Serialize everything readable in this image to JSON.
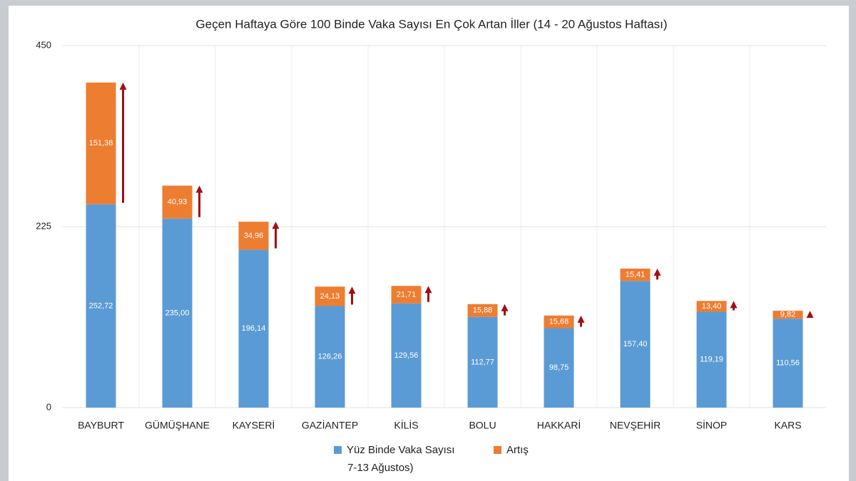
{
  "chart_data": {
    "type": "stacked_bar",
    "title": "Geçen Haftaya Göre 100 Binde Vaka Sayısı En Çok Artan İller (14 - 20 Ağustos Haftası)",
    "categories": [
      "BAYBURT",
      "GÜMÜŞHANE",
      "KAYSERİ",
      "GAZİANTEP",
      "KİLİS",
      "BOLU",
      "HAKKARİ",
      "NEVŞEHİR",
      "SİNOP",
      "KARS"
    ],
    "series": [
      {
        "name": "Yüz Binde Vaka Sayısı",
        "color": "#5b9bd5",
        "values": [
          252.72,
          235.0,
          196.14,
          126.26,
          129.56,
          112.77,
          98.75,
          157.4,
          119.19,
          110.56
        ],
        "value_labels": [
          "252,72",
          "235,00",
          "196,14",
          "126,26",
          "129,56",
          "112,77",
          "98,75",
          "157,40",
          "119,19",
          "110,56"
        ]
      },
      {
        "name": "Artış",
        "color": "#ed7d31",
        "values": [
          151.38,
          40.93,
          34.96,
          24.13,
          21.71,
          15.88,
          15.68,
          15.41,
          13.4,
          9.82
        ],
        "value_labels": [
          "151,38",
          "40,93",
          "34,96",
          "24,13",
          "21,71",
          "15,88",
          "15,68",
          "15,41",
          "13,40",
          "9,82"
        ]
      }
    ],
    "legend_note": "7-13 Ağustos)",
    "arrow_color": "#a01014",
    "ylim": [
      0,
      450
    ],
    "yticks": [
      0,
      225,
      450
    ],
    "grid": true
  }
}
